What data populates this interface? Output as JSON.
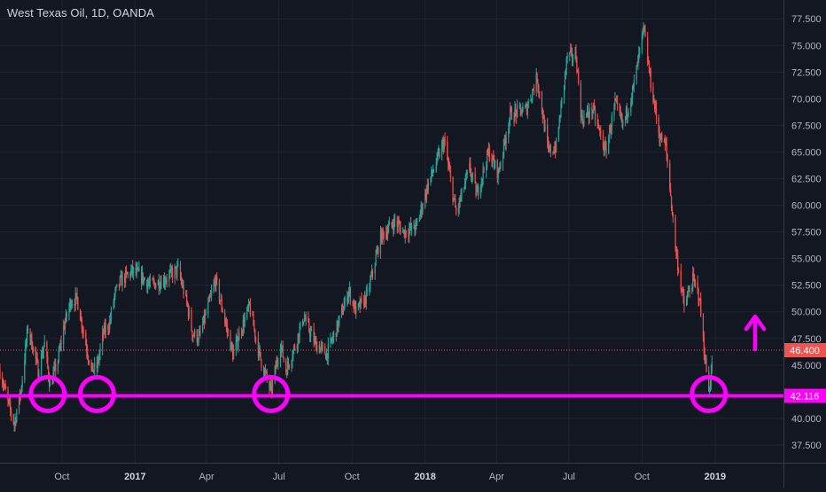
{
  "colors": {
    "background": "#131722",
    "grid": "#1f2430",
    "axis_text": "#b2b5be",
    "up_candle": "#26a69a",
    "down_candle": "#ef5350",
    "annotation": "#ff00ff",
    "price_line": "#ef5350"
  },
  "chart_data": {
    "type": "candlestick",
    "title": "West Texas Oil, 1D, OANDA",
    "y_axis": {
      "position": "right",
      "range": [
        36.5,
        78.6
      ],
      "ticks": [
        "37.500",
        "40.000",
        "42.500",
        "45.000",
        "47.500",
        "50.000",
        "52.500",
        "55.000",
        "57.500",
        "60.000",
        "62.500",
        "65.000",
        "67.500",
        "70.000",
        "72.500",
        "75.000",
        "77.500"
      ]
    },
    "x_axis": {
      "range": [
        "2016-07-15",
        "2019-03-28"
      ],
      "ticks": [
        {
          "date": "2016-10-01",
          "label": "Oct"
        },
        {
          "date": "2017-01-01",
          "label": "2017"
        },
        {
          "date": "2017-04-01",
          "label": "Apr"
        },
        {
          "date": "2017-07-01",
          "label": "Jul"
        },
        {
          "date": "2017-10-01",
          "label": "Oct"
        },
        {
          "date": "2018-01-01",
          "label": "2018"
        },
        {
          "date": "2018-04-01",
          "label": "Apr"
        },
        {
          "date": "2018-07-01",
          "label": "Jul"
        },
        {
          "date": "2018-10-01",
          "label": "Oct"
        },
        {
          "date": "2019-01-01",
          "label": "2019"
        }
      ]
    },
    "grid": true,
    "series": [
      {
        "path": [
          [
            "2016-07-15",
            44.5
          ],
          [
            "2016-07-25",
            41.5
          ],
          [
            "2016-08-02",
            39.5
          ],
          [
            "2016-08-10",
            42.5
          ],
          [
            "2016-08-19",
            48.5
          ],
          [
            "2016-08-26",
            46.5
          ],
          [
            "2016-09-01",
            44.5
          ],
          [
            "2016-09-09",
            47.0
          ],
          [
            "2016-09-16",
            43.0
          ],
          [
            "2016-09-26",
            45.5
          ],
          [
            "2016-10-03",
            48.5
          ],
          [
            "2016-10-12",
            51.0
          ],
          [
            "2016-10-20",
            51.2
          ],
          [
            "2016-10-31",
            47.0
          ],
          [
            "2016-11-07",
            44.5
          ],
          [
            "2016-11-14",
            44.8
          ],
          [
            "2016-11-22",
            48.0
          ],
          [
            "2016-11-30",
            49.0
          ],
          [
            "2016-12-06",
            51.5
          ],
          [
            "2016-12-13",
            52.8
          ],
          [
            "2016-12-28",
            53.8
          ],
          [
            "2017-01-06",
            53.5
          ],
          [
            "2017-01-20",
            52.5
          ],
          [
            "2017-02-06",
            53.0
          ],
          [
            "2017-02-24",
            54.0
          ],
          [
            "2017-03-08",
            50.5
          ],
          [
            "2017-03-14",
            48.0
          ],
          [
            "2017-03-22",
            47.5
          ],
          [
            "2017-04-03",
            50.5
          ],
          [
            "2017-04-12",
            53.0
          ],
          [
            "2017-04-20",
            50.5
          ],
          [
            "2017-05-04",
            46.0
          ],
          [
            "2017-05-15",
            48.5
          ],
          [
            "2017-05-25",
            50.5
          ],
          [
            "2017-06-07",
            45.8
          ],
          [
            "2017-06-21",
            42.5
          ],
          [
            "2017-07-03",
            47.0
          ],
          [
            "2017-07-10",
            44.5
          ],
          [
            "2017-07-20",
            46.5
          ],
          [
            "2017-08-01",
            49.5
          ],
          [
            "2017-08-16",
            47.0
          ],
          [
            "2017-08-30",
            46.0
          ],
          [
            "2017-09-12",
            48.5
          ],
          [
            "2017-09-27",
            52.0
          ],
          [
            "2017-10-06",
            50.0
          ],
          [
            "2017-10-20",
            51.5
          ],
          [
            "2017-11-06",
            57.0
          ],
          [
            "2017-11-24",
            58.5
          ],
          [
            "2017-12-05",
            57.5
          ],
          [
            "2017-12-21",
            58.0
          ],
          [
            "2018-01-04",
            61.8
          ],
          [
            "2018-01-25",
            66.0
          ],
          [
            "2018-02-09",
            59.2
          ],
          [
            "2018-02-26",
            63.5
          ],
          [
            "2018-03-07",
            61.0
          ],
          [
            "2018-03-22",
            65.0
          ],
          [
            "2018-04-03",
            63.0
          ],
          [
            "2018-04-18",
            68.5
          ],
          [
            "2018-05-08",
            69.0
          ],
          [
            "2018-05-22",
            72.0
          ],
          [
            "2018-06-05",
            65.0
          ],
          [
            "2018-06-15",
            65.5
          ],
          [
            "2018-06-29",
            74.0
          ],
          [
            "2018-07-10",
            74.0
          ],
          [
            "2018-07-17",
            68.0
          ],
          [
            "2018-07-31",
            69.0
          ],
          [
            "2018-08-16",
            65.0
          ],
          [
            "2018-08-28",
            69.5
          ],
          [
            "2018-09-07",
            67.5
          ],
          [
            "2018-09-20",
            71.0
          ],
          [
            "2018-10-03",
            76.5
          ],
          [
            "2018-10-11",
            72.0
          ],
          [
            "2018-10-23",
            66.5
          ],
          [
            "2018-10-31",
            65.5
          ],
          [
            "2018-11-13",
            55.5
          ],
          [
            "2018-11-23",
            50.5
          ],
          [
            "2018-12-04",
            53.0
          ],
          [
            "2018-12-12",
            51.5
          ],
          [
            "2018-12-18",
            46.5
          ],
          [
            "2018-12-24",
            42.5
          ],
          [
            "2018-12-28",
            45.0
          ]
        ]
      }
    ],
    "current_price": {
      "value": 46.4,
      "label": "46.400"
    },
    "support": {
      "value": 42.116,
      "label": "42.116"
    },
    "circled_lows": [
      "2016-09-13",
      "2016-11-14",
      "2017-06-21",
      "2018-12-24"
    ],
    "arrow": {
      "direction": "up"
    }
  }
}
